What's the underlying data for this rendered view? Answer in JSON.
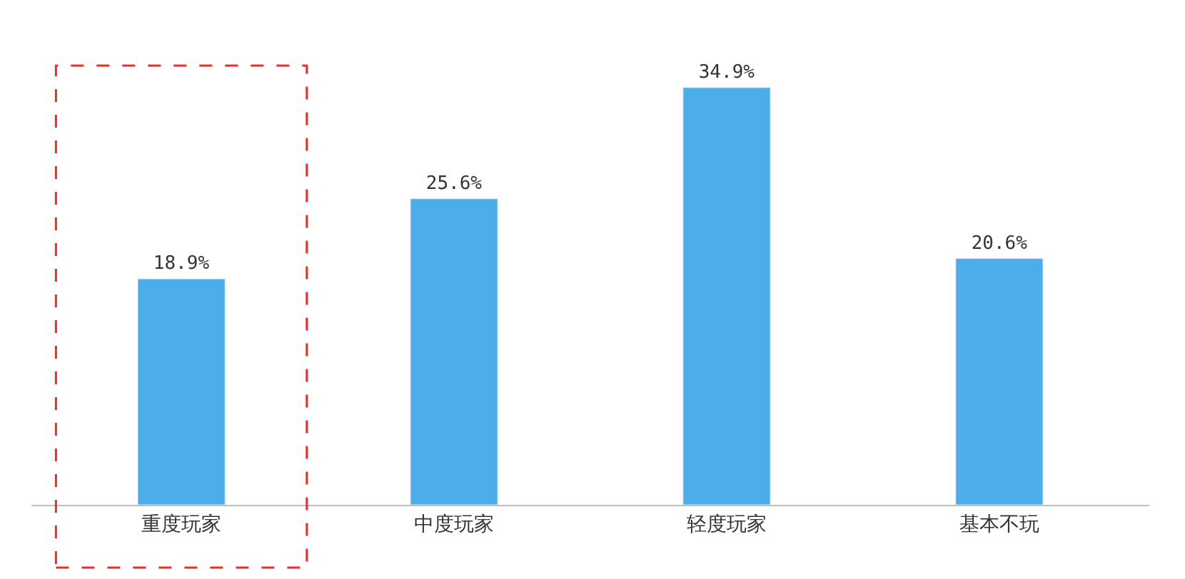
{
  "chart_data": {
    "type": "bar",
    "categories": [
      "重度玩家",
      "中度玩家",
      "轻度玩家",
      "基本不玩"
    ],
    "series": [
      {
        "color": "#4baeea",
        "values": [
          18.9,
          25.6,
          34.9,
          20.6
        ],
        "value_labels": [
          "18.9%",
          "25.6%",
          "34.9%",
          "20.6%"
        ]
      }
    ],
    "tick_labels": "x"
  }
}
